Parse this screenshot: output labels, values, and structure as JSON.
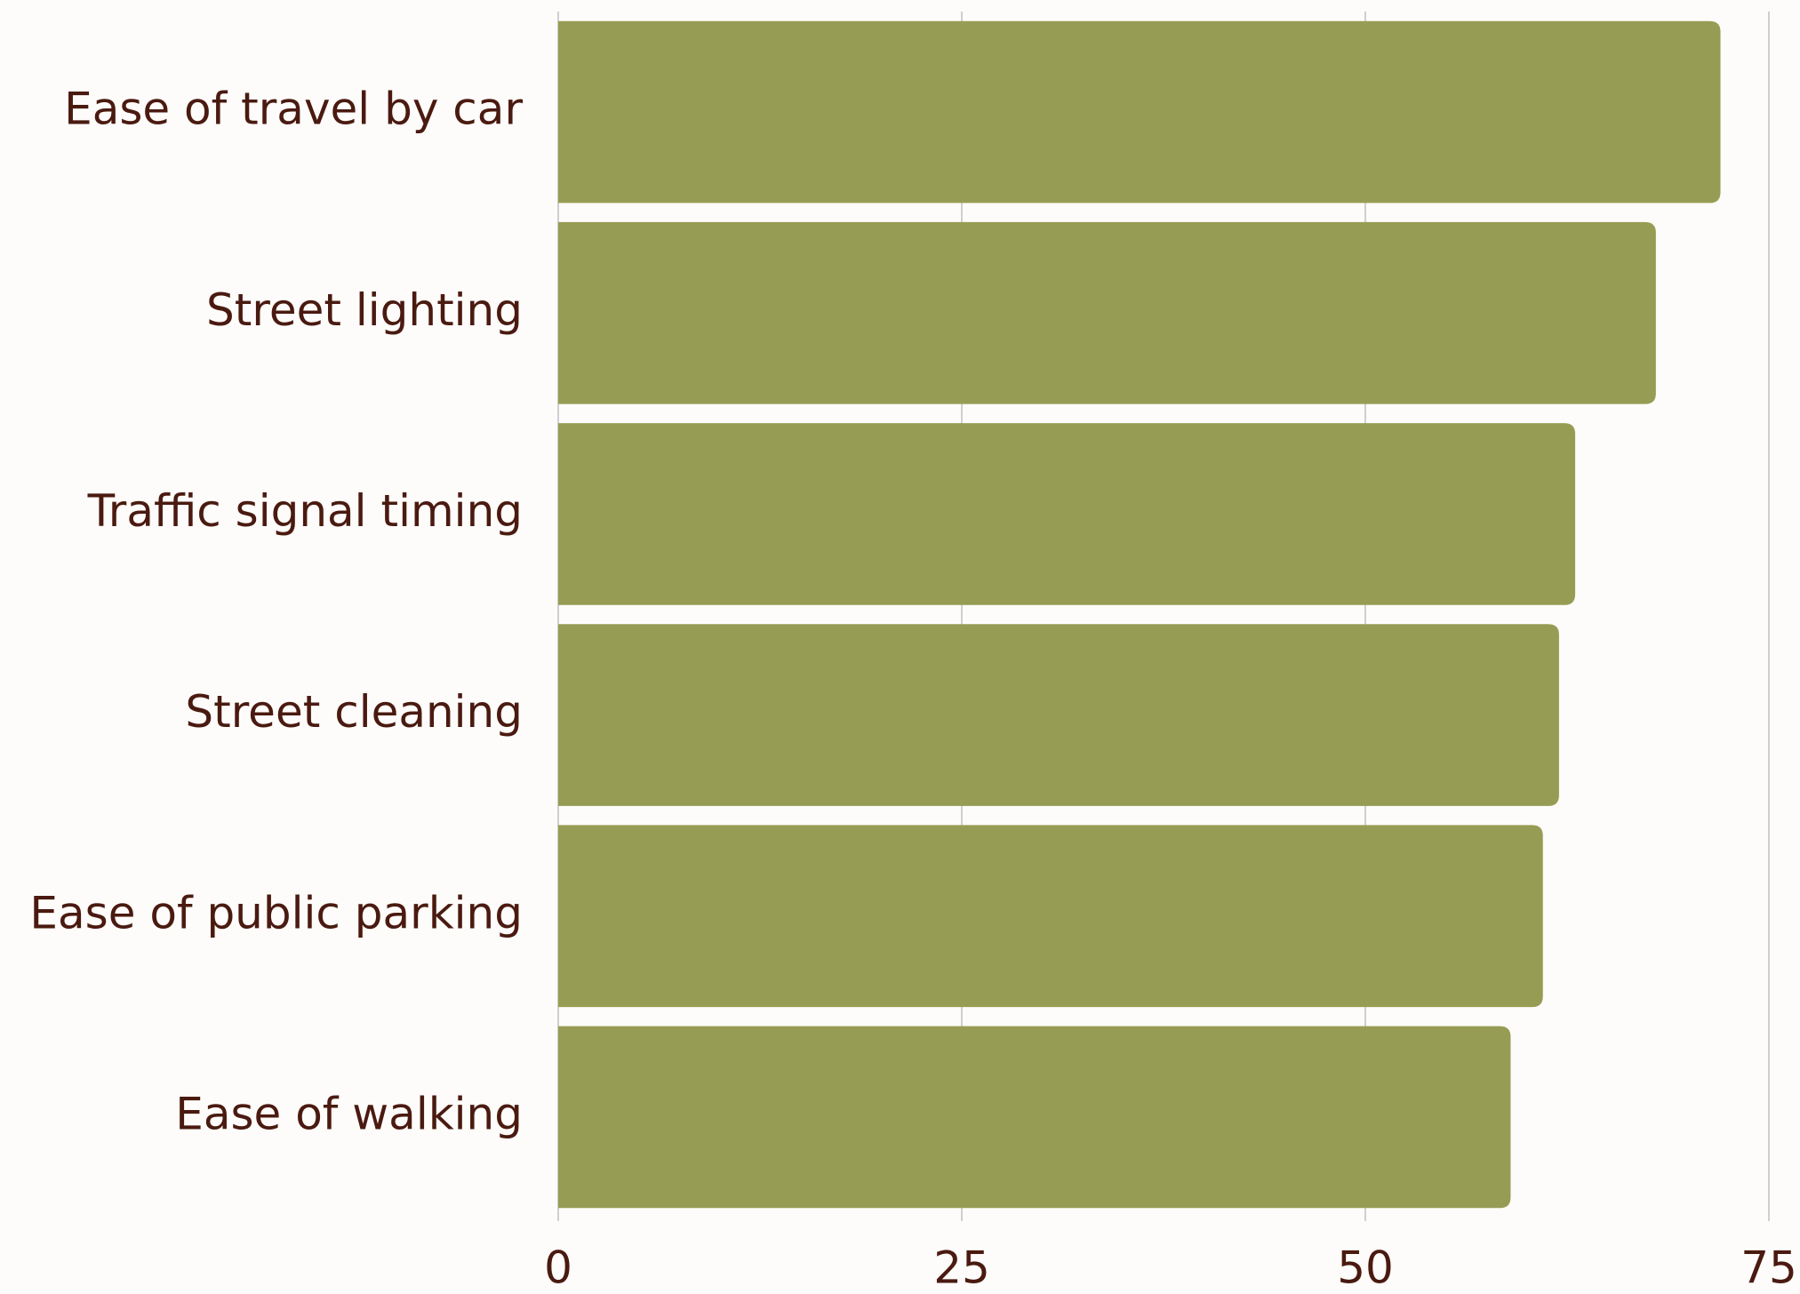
{
  "chart_data": {
    "type": "bar",
    "categories": [
      "Ease of travel by car",
      "Street lighting",
      "Traffic signal timing",
      "Street cleaning",
      "Ease of public parking",
      "Ease of walking"
    ],
    "values": [
      72,
      68,
      63,
      62,
      61,
      59
    ],
    "color": "#979c54",
    "xlim": [
      0,
      75
    ],
    "xticks": [
      0,
      25,
      50,
      75
    ],
    "grid": true
  }
}
